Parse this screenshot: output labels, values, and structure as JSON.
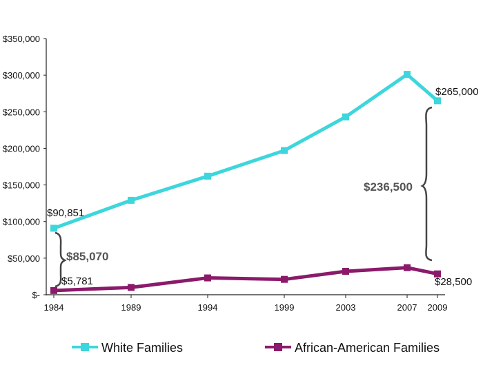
{
  "chart_data": {
    "type": "line",
    "x": [
      "1984",
      "1989",
      "1994",
      "1999",
      "2003",
      "2007",
      "2009"
    ],
    "ylim": [
      0,
      350000
    ],
    "yticks": [
      0,
      50000,
      100000,
      150000,
      200000,
      250000,
      300000,
      350000
    ],
    "ytick_labels": [
      "$-",
      "$50,000",
      "$100,000",
      "$150,000",
      "$200,000",
      "$250,000",
      "$300,000",
      "$350,000"
    ],
    "grid": false,
    "legend_position": "bottom",
    "series": [
      {
        "name": "White Families",
        "color": "#3dd6dc",
        "values": [
          90851,
          129000,
          162000,
          197000,
          243000,
          301000,
          265000
        ]
      },
      {
        "name": "African-American Families",
        "color": "#8b1a6b",
        "values": [
          5781,
          10000,
          23000,
          21000,
          32000,
          37000,
          28500
        ]
      }
    ],
    "annotations": {
      "white_start": "$90,851",
      "black_start": "$5,781",
      "white_end": "$265,000",
      "black_end": "$28,500",
      "gap_start": "$85,070",
      "gap_end": "$236,500"
    }
  }
}
